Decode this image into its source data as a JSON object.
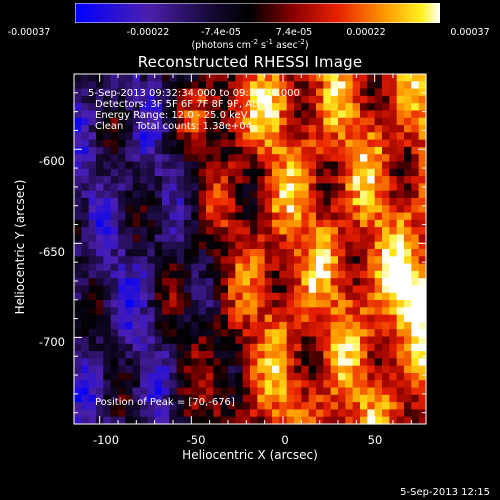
{
  "colorbar": {
    "ticks": [
      "-0.00037",
      "-0.00022",
      "-7.4e-05",
      "7.4e-05",
      "0.00022",
      "0.00037"
    ],
    "units_main": "(photons cm",
    "units_sup1": "-2",
    "units_mid1": " s",
    "units_sup2": "-1",
    "units_mid2": " asec",
    "units_sup3": "-2",
    "units_end": ")"
  },
  "chart_data": {
    "type": "heatmap",
    "title": "Reconstructed RHESSI Image",
    "xlabel": "Heliocentric X (arcsec)",
    "ylabel": "Heliocentric Y (arcsec)",
    "xlim": [
      -114,
      78
    ],
    "ylim": [
      -746,
      -560
    ],
    "x_ticks": [
      "-100",
      "-50",
      "0",
      "50"
    ],
    "y_ticks": [
      "-600",
      "-650",
      "-700"
    ],
    "value_range": [
      -0.00037,
      0.00037
    ],
    "colormap": "blue-purple-black-red-orange-yellow-white",
    "peak_position": [
      70,
      -676
    ],
    "annotations": [
      "5-Sep-2013 09:32:34.000 to 09:38:34.000",
      "Detectors: 3F 5F 6F 7F 8F 9F, Att 0",
      "Energy Range: 12.0 - 25.0 keV",
      "Clean    Total counts: 1.38e+04"
    ],
    "peak_label": "Position of Peak = [70,-676]"
  },
  "footer": {
    "timestamp": "5-Sep-2013 12:15"
  }
}
